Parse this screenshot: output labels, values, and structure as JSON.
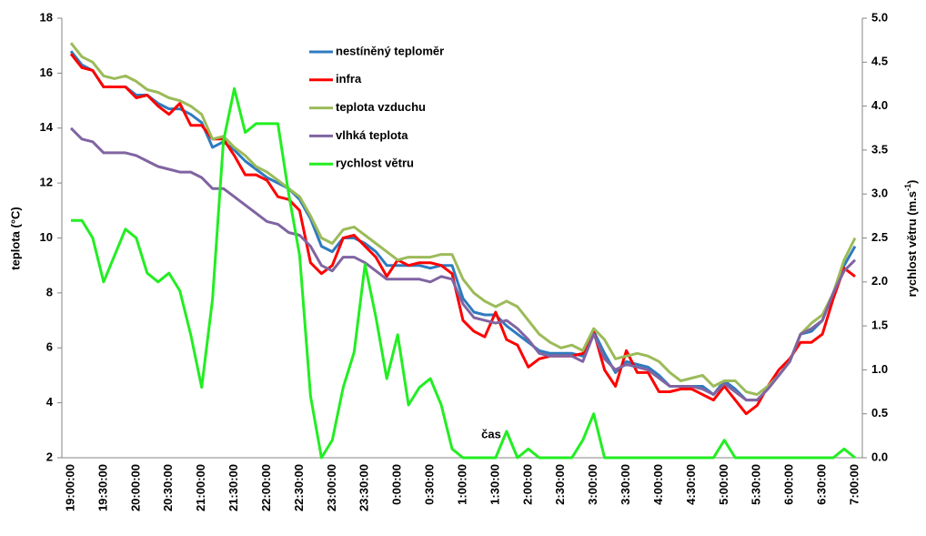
{
  "chart_data": {
    "type": "line",
    "xlabel": "čas",
    "ylabel": "teplota (°C)",
    "y2label": [
      "rychlost větru (m.s",
      "-1",
      ")"
    ],
    "categories": [
      "19:00:00",
      null,
      null,
      "19:30:00",
      null,
      null,
      "20:00:00",
      null,
      null,
      "20:30:00",
      null,
      null,
      "21:00:00",
      null,
      null,
      "21:30:00",
      null,
      null,
      "22:00:00",
      null,
      null,
      "22:30:00",
      null,
      null,
      "23:00:00",
      null,
      null,
      "23:30:00",
      null,
      null,
      "0:00:00",
      null,
      null,
      "0:30:00",
      null,
      null,
      "1:00:00",
      null,
      null,
      "1:30:00",
      null,
      null,
      "2:00:00",
      null,
      null,
      "2:30:00",
      null,
      null,
      "3:00:00",
      null,
      null,
      "3:30:00",
      null,
      null,
      "4:00:00",
      null,
      null,
      "4:30:00",
      null,
      null,
      "5:00:00",
      null,
      null,
      "5:30:00",
      null,
      null,
      "6:00:00",
      null,
      null,
      "6:30:00",
      null,
      null,
      "7:00:00"
    ],
    "ylim": [
      2,
      18
    ],
    "yticks": [
      2,
      4,
      6,
      8,
      10,
      12,
      14,
      16,
      18
    ],
    "y2lim": [
      0,
      5
    ],
    "y2ticks": [
      {
        "value": 0,
        "label": "0.0"
      },
      {
        "value": 0.5,
        "label": "0.5"
      },
      {
        "value": 1,
        "label": "1.0"
      },
      {
        "value": 1.5,
        "label": "1.5"
      },
      {
        "value": 2,
        "label": "2.0"
      },
      {
        "value": 2.5,
        "label": "2.5"
      },
      {
        "value": 3,
        "label": "3.0"
      },
      {
        "value": 3.5,
        "label": "3.5"
      },
      {
        "value": 4,
        "label": "4.0"
      },
      {
        "value": 4.5,
        "label": "4.5"
      },
      {
        "value": 5,
        "label": "5.0"
      }
    ],
    "grid": false,
    "legend": "top-center",
    "series": [
      {
        "name": "nestíněný teploměr",
        "color": "#2e7bbf",
        "values": [
          16.8,
          16.3,
          16.1,
          15.5,
          15.5,
          15.5,
          15.2,
          15.2,
          14.9,
          14.7,
          14.7,
          14.5,
          14.2,
          13.3,
          13.5,
          13.2,
          12.8,
          12.5,
          12.2,
          12.0,
          11.8,
          11.4,
          10.7,
          9.7,
          9.5,
          10.0,
          10.0,
          9.8,
          9.5,
          9.0,
          9.0,
          9.0,
          9.0,
          8.9,
          9.0,
          9.0,
          7.8,
          7.3,
          7.2,
          7.2,
          6.8,
          6.5,
          6.2,
          5.9,
          5.8,
          5.8,
          5.8,
          5.7,
          6.6,
          5.8,
          5.1,
          5.5,
          5.4,
          5.3,
          5.0,
          4.6,
          4.6,
          4.6,
          4.6,
          4.3,
          4.8,
          4.5,
          4.1,
          4.1,
          4.5,
          5.0,
          5.5,
          6.5,
          6.6,
          7.0,
          8.0,
          9.0,
          9.7
        ]
      },
      {
        "name": "infra",
        "color": "#ff0000",
        "values": [
          16.7,
          16.2,
          16.1,
          15.5,
          15.5,
          15.5,
          15.1,
          15.2,
          14.8,
          14.5,
          14.9,
          14.1,
          14.1,
          13.6,
          13.6,
          13.0,
          12.3,
          12.3,
          12.1,
          11.5,
          11.4,
          11.0,
          9.1,
          8.7,
          9.0,
          10.0,
          10.1,
          9.7,
          9.3,
          8.6,
          9.2,
          9.0,
          9.1,
          9.1,
          9.0,
          8.7,
          7.0,
          6.6,
          6.4,
          7.3,
          6.3,
          6.1,
          5.3,
          5.6,
          5.7,
          5.7,
          5.7,
          5.8,
          6.6,
          5.2,
          4.6,
          5.9,
          5.1,
          5.1,
          4.4,
          4.4,
          4.5,
          4.5,
          4.3,
          4.1,
          4.6,
          4.1,
          3.6,
          3.9,
          4.6,
          5.2,
          5.6,
          6.2,
          6.2,
          6.5,
          7.8,
          8.9,
          8.6
        ]
      },
      {
        "name": "teplota vzduchu",
        "color": "#9bbb59",
        "values": [
          17.1,
          16.6,
          16.4,
          15.9,
          15.8,
          15.9,
          15.7,
          15.4,
          15.3,
          15.1,
          15.0,
          14.8,
          14.5,
          13.6,
          13.7,
          13.3,
          13.0,
          12.6,
          12.4,
          12.1,
          11.8,
          11.5,
          10.8,
          10.0,
          9.8,
          10.3,
          10.4,
          10.1,
          9.8,
          9.5,
          9.2,
          9.3,
          9.3,
          9.3,
          9.4,
          9.4,
          8.5,
          8.0,
          7.7,
          7.5,
          7.7,
          7.5,
          7.0,
          6.5,
          6.2,
          6.0,
          6.1,
          5.9,
          6.7,
          6.3,
          5.6,
          5.7,
          5.8,
          5.7,
          5.5,
          5.1,
          4.8,
          4.9,
          5.0,
          4.6,
          4.8,
          4.8,
          4.4,
          4.3,
          4.6,
          5.0,
          5.5,
          6.5,
          6.9,
          7.2,
          8.0,
          9.2,
          10.0
        ]
      },
      {
        "name": "vlhká teplota",
        "color": "#8064a2",
        "values": [
          14.0,
          13.6,
          13.5,
          13.1,
          13.1,
          13.1,
          13.0,
          12.8,
          12.6,
          12.5,
          12.4,
          12.4,
          12.2,
          11.8,
          11.8,
          11.5,
          11.2,
          10.9,
          10.6,
          10.5,
          10.2,
          10.1,
          9.7,
          9.0,
          8.8,
          9.3,
          9.3,
          9.1,
          8.8,
          8.5,
          8.5,
          8.5,
          8.5,
          8.4,
          8.6,
          8.5,
          7.6,
          7.1,
          7.0,
          6.9,
          7.0,
          6.7,
          6.3,
          5.8,
          5.7,
          5.7,
          5.7,
          5.5,
          6.5,
          5.6,
          5.2,
          5.4,
          5.3,
          5.2,
          4.9,
          4.6,
          4.6,
          4.6,
          4.5,
          4.3,
          4.7,
          4.4,
          4.1,
          4.1,
          4.5,
          5.0,
          5.5,
          6.5,
          6.7,
          7.0,
          8.0,
          8.8,
          9.2
        ]
      },
      {
        "name": "rychlost větru",
        "color": "#22ee22",
        "axis": "y2",
        "values": [
          2.7,
          2.7,
          2.5,
          2.0,
          2.3,
          2.6,
          2.5,
          2.1,
          2.0,
          2.1,
          1.9,
          1.4,
          0.8,
          1.8,
          3.6,
          4.2,
          3.7,
          3.8,
          3.8,
          3.8,
          3.0,
          2.3,
          0.7,
          0.0,
          0.2,
          0.8,
          1.2,
          2.2,
          1.6,
          0.9,
          1.4,
          0.6,
          0.8,
          0.9,
          0.6,
          0.1,
          0,
          0,
          0,
          0,
          0.3,
          0,
          0.1,
          0,
          0,
          0,
          0,
          0.2,
          0.5,
          0,
          0,
          0,
          0,
          0,
          0,
          0,
          0,
          0,
          0,
          0,
          0.2,
          0,
          0,
          0,
          0,
          0,
          0,
          0,
          0,
          0,
          0,
          0.1,
          0.0
        ]
      }
    ]
  }
}
